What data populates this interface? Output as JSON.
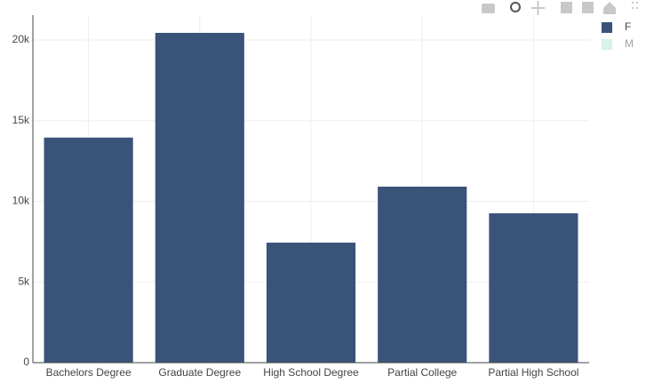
{
  "chart_data": {
    "type": "bar",
    "categories": [
      "Bachelors Degree",
      "Graduate Degree",
      "High School Degree",
      "Partial College",
      "Partial High School"
    ],
    "series": [
      {
        "name": "F",
        "color": "#3a5479",
        "values": [
          13950,
          20440,
          7440,
          10910,
          9260
        ]
      },
      {
        "name": "M",
        "color": "#b3e6d6",
        "visible": "legendonly",
        "values": [
          null,
          null,
          null,
          null,
          null
        ]
      }
    ],
    "ylim": [
      0,
      21540
    ],
    "yticks": [
      0,
      {
        "value": 5000,
        "label": "5k"
      },
      {
        "value": 10000,
        "label": "10k"
      },
      {
        "value": 15000,
        "label": "15k"
      },
      {
        "value": 20000,
        "label": "20k"
      }
    ],
    "grid": true
  }
}
